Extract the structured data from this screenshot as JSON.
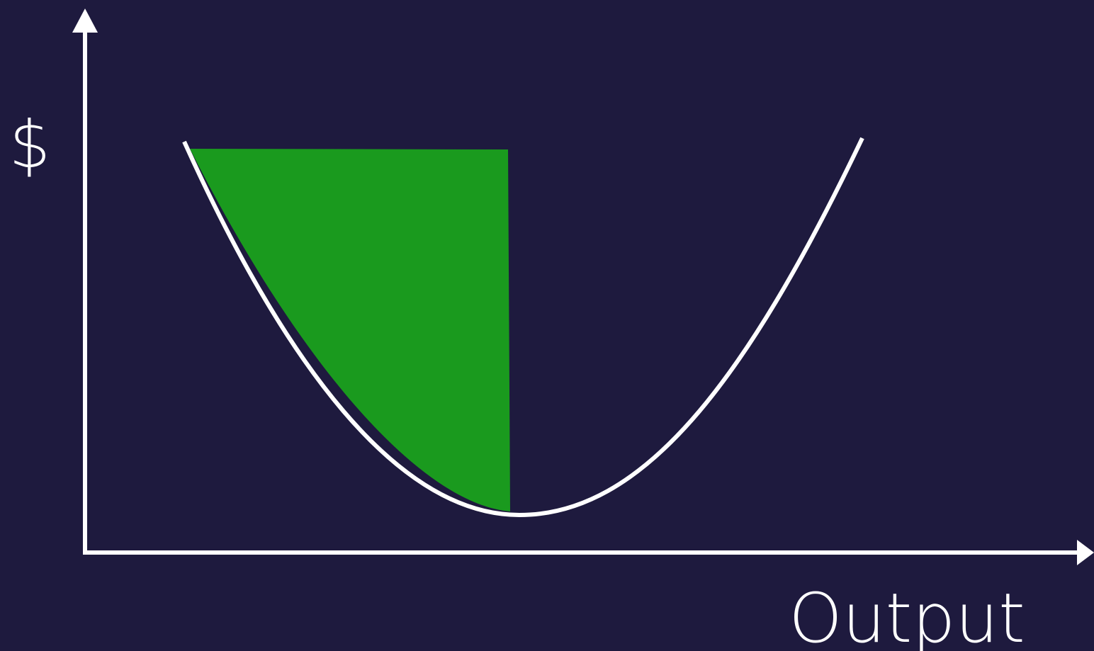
{
  "axes": {
    "y_label": "$",
    "x_label": "Output"
  }
}
